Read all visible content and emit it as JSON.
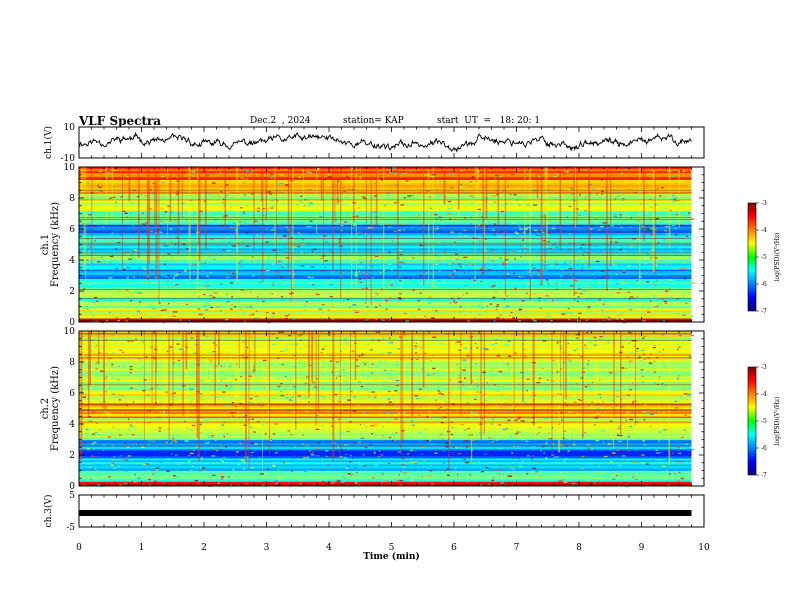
{
  "header": {
    "title": "VLF Spectra",
    "date": "Dec.2  , 2024",
    "station": "station= KAP",
    "start_ut": "start  UT  =   18: 20: 1"
  },
  "chart_data": [
    {
      "type": "line",
      "panel": "ch1-waveform",
      "ylabel": "ch.1(V)",
      "ylim": [
        -10,
        10
      ],
      "y_ticks": [
        "10",
        "-10"
      ],
      "xlim": [
        0,
        10
      ],
      "x_unit": "min",
      "data_extent": 9.8,
      "note_series": "continuous noisy waveform, roughly between -5 and 6 V"
    },
    {
      "type": "heatmap",
      "panel": "ch1-spectrogram",
      "ylabel": "ch.1\nFrequency (kHz)",
      "ylabel_line1": "ch.1",
      "ylabel_line2": "Frequency (kHz)",
      "ylim": [
        0,
        10
      ],
      "y_ticks": [
        "0",
        "2",
        "4",
        "6",
        "8",
        "10"
      ],
      "xlim": [
        0,
        10
      ],
      "data_extent": 9.8,
      "colorbar": {
        "label": "log(PSD)(V²/Hz)",
        "range": [
          -7,
          -3
        ],
        "ticks": [
          "-3",
          "-4",
          "-5",
          "-6",
          "-7"
        ]
      },
      "bands": [
        {
          "from": 0.0,
          "to": 0.25,
          "level": -3.3
        },
        {
          "from": 0.25,
          "to": 0.9,
          "level": -4.6
        },
        {
          "from": 0.9,
          "to": 1.6,
          "level": -5.1
        },
        {
          "from": 1.6,
          "to": 2.2,
          "level": -4.9
        },
        {
          "from": 2.2,
          "to": 2.8,
          "level": -5.4
        },
        {
          "from": 2.8,
          "to": 3.4,
          "level": -5.9
        },
        {
          "from": 3.4,
          "to": 3.9,
          "level": -5.5
        },
        {
          "from": 3.9,
          "to": 4.5,
          "level": -5.0
        },
        {
          "from": 4.5,
          "to": 5.0,
          "level": -5.7
        },
        {
          "from": 5.0,
          "to": 5.6,
          "level": -5.3
        },
        {
          "from": 5.6,
          "to": 6.3,
          "level": -6.1
        },
        {
          "from": 6.3,
          "to": 7.2,
          "level": -5.1
        },
        {
          "from": 7.2,
          "to": 8.3,
          "level": -4.7
        },
        {
          "from": 8.3,
          "to": 9.2,
          "level": -4.3
        },
        {
          "from": 9.2,
          "to": 10.0,
          "level": -3.9
        }
      ]
    },
    {
      "type": "heatmap",
      "panel": "ch2-spectrogram",
      "ylabel": "ch.2\nFrequency (kHz)",
      "ylabel_line1": "ch.2",
      "ylabel_line2": "Frequency (kHz)",
      "ylim": [
        0,
        10
      ],
      "y_ticks": [
        "0",
        "2",
        "4",
        "6",
        "8",
        "10"
      ],
      "xlim": [
        0,
        10
      ],
      "data_extent": 9.8,
      "colorbar": {
        "label": "log(PSD)(V²/Hz)",
        "range": [
          -7,
          -3
        ],
        "ticks": [
          "-3",
          "-4",
          "-5",
          "-6",
          "-7"
        ]
      },
      "bands": [
        {
          "from": 0.0,
          "to": 0.3,
          "level": -3.4
        },
        {
          "from": 0.3,
          "to": 1.0,
          "level": -5.2
        },
        {
          "from": 1.0,
          "to": 1.8,
          "level": -5.6
        },
        {
          "from": 1.8,
          "to": 2.4,
          "level": -6.2
        },
        {
          "from": 2.4,
          "to": 3.0,
          "level": -5.8
        },
        {
          "from": 3.0,
          "to": 3.6,
          "level": -4.9
        },
        {
          "from": 3.6,
          "to": 4.4,
          "level": -4.6
        },
        {
          "from": 4.4,
          "to": 5.4,
          "level": -4.2
        },
        {
          "from": 5.4,
          "to": 6.2,
          "level": -4.6
        },
        {
          "from": 6.2,
          "to": 7.2,
          "level": -4.8
        },
        {
          "from": 7.2,
          "to": 8.2,
          "level": -4.7
        },
        {
          "from": 8.2,
          "to": 10.0,
          "level": -4.6
        }
      ]
    },
    {
      "type": "line",
      "panel": "ch3-signal",
      "ylabel": "ch.3(V)",
      "ylim": [
        -5,
        5
      ],
      "y_ticks": [
        "5",
        "-5"
      ],
      "xlim": [
        0,
        10
      ],
      "data_extent": 9.8,
      "series": [
        {
          "x": [
            0,
            9.8
          ],
          "y": [
            0,
            0
          ]
        }
      ]
    }
  ],
  "x_axis": {
    "label": "Time (min)",
    "ticks": [
      "0",
      "1",
      "2",
      "3",
      "4",
      "5",
      "6",
      "7",
      "8",
      "9",
      "10"
    ]
  }
}
